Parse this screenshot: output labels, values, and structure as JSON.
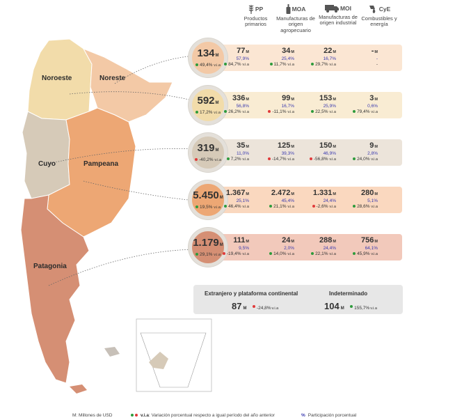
{
  "headers": [
    {
      "code": "PP",
      "label": "Productos primarios",
      "icon": "wheat-icon"
    },
    {
      "code": "MOA",
      "label": "Manufacturas de origen agropecuario",
      "icon": "bottle-icon"
    },
    {
      "code": "MOI",
      "label": "Manufacturas de origen industrial",
      "icon": "truck-icon"
    },
    {
      "code": "CyE",
      "label": "Combustibles y energía",
      "icon": "fuel-drop-icon"
    }
  ],
  "unit": "M",
  "via_suffix": "v.i.a",
  "regions": [
    {
      "name": "Noreste",
      "total": "134",
      "total_via": "49,4%",
      "total_trend": "up",
      "bg": "#fbe6d3",
      "circle": "#f3c9a6",
      "cells": [
        {
          "value": "77",
          "pct": "57,9%",
          "via": "84,7%",
          "trend": "up"
        },
        {
          "value": "34",
          "pct": "25,4%",
          "via": "11,7%",
          "trend": "up"
        },
        {
          "value": "22",
          "pct": "16,7%",
          "via": "29,7%",
          "trend": "up"
        },
        {
          "value": "-",
          "pct": "-",
          "via": "-",
          "trend": "none"
        }
      ]
    },
    {
      "name": "Noroeste",
      "total": "592",
      "total_via": "17,2%",
      "total_trend": "up",
      "bg": "#f9ecd3",
      "circle": "#f2dcaa",
      "cells": [
        {
          "value": "336",
          "pct": "56,8%",
          "via": "26,2%",
          "trend": "up"
        },
        {
          "value": "99",
          "pct": "16,7%",
          "via": "-11,1%",
          "trend": "down"
        },
        {
          "value": "153",
          "pct": "25,9%",
          "via": "22,5%",
          "trend": "up"
        },
        {
          "value": "3",
          "pct": "0,6%",
          "via": "79,4%",
          "trend": "up"
        }
      ]
    },
    {
      "name": "Cuyo",
      "total": "319",
      "total_via": "-40,2%",
      "total_trend": "down",
      "bg": "#ece4da",
      "circle": "#d6cab8",
      "cells": [
        {
          "value": "35",
          "pct": "11,0%",
          "via": "7,2%",
          "trend": "up"
        },
        {
          "value": "125",
          "pct": "39,3%",
          "via": "-14,7%",
          "trend": "down"
        },
        {
          "value": "150",
          "pct": "46,9%",
          "via": "-56,8%",
          "trend": "down"
        },
        {
          "value": "9",
          "pct": "2,8%",
          "via": "24,0%",
          "trend": "up"
        }
      ]
    },
    {
      "name": "Pampeana",
      "total": "5.450",
      "total_via": "19,5%",
      "total_trend": "up",
      "bg": "#fad8bf",
      "circle": "#eda774",
      "cells": [
        {
          "value": "1.367",
          "pct": "25,1%",
          "via": "46,4%",
          "trend": "up"
        },
        {
          "value": "2.472",
          "pct": "45,4%",
          "via": "21,1%",
          "trend": "up"
        },
        {
          "value": "1.331",
          "pct": "24,4%",
          "via": "-2,6%",
          "trend": "down"
        },
        {
          "value": "280",
          "pct": "5,1%",
          "via": "28,6%",
          "trend": "up"
        }
      ]
    },
    {
      "name": "Patagonia",
      "total": "1.179",
      "total_via": "29,1%",
      "total_trend": "up",
      "bg": "#f2c9bb",
      "circle": "#d58f74",
      "cells": [
        {
          "value": "111",
          "pct": "9,5%",
          "via": "-19,4%",
          "trend": "down"
        },
        {
          "value": "24",
          "pct": "2,0%",
          "via": "14,0%",
          "trend": "up"
        },
        {
          "value": "288",
          "pct": "24,4%",
          "via": "22,1%",
          "trend": "up"
        },
        {
          "value": "756",
          "pct": "64,1%",
          "via": "45,9%",
          "trend": "up"
        }
      ]
    }
  ],
  "footer_box": {
    "left": {
      "title": "Extranjero y plataforma continental",
      "value": "87",
      "via": "-24,8%",
      "trend": "down"
    },
    "right": {
      "title": "Indeterminado",
      "value": "104",
      "via": "155,7%",
      "trend": "up"
    }
  },
  "legend": {
    "units": "M: Millones de USD",
    "via_label": "v.i.a",
    "via_text": ": Variación porcentual respecto a igual período del año anterior",
    "pct_symbol": "%",
    "pct_text": "Participación porcentual"
  },
  "colors": {
    "up": "#2e9b3c",
    "down": "#e03a3a",
    "pct": "#3b3bb0"
  }
}
